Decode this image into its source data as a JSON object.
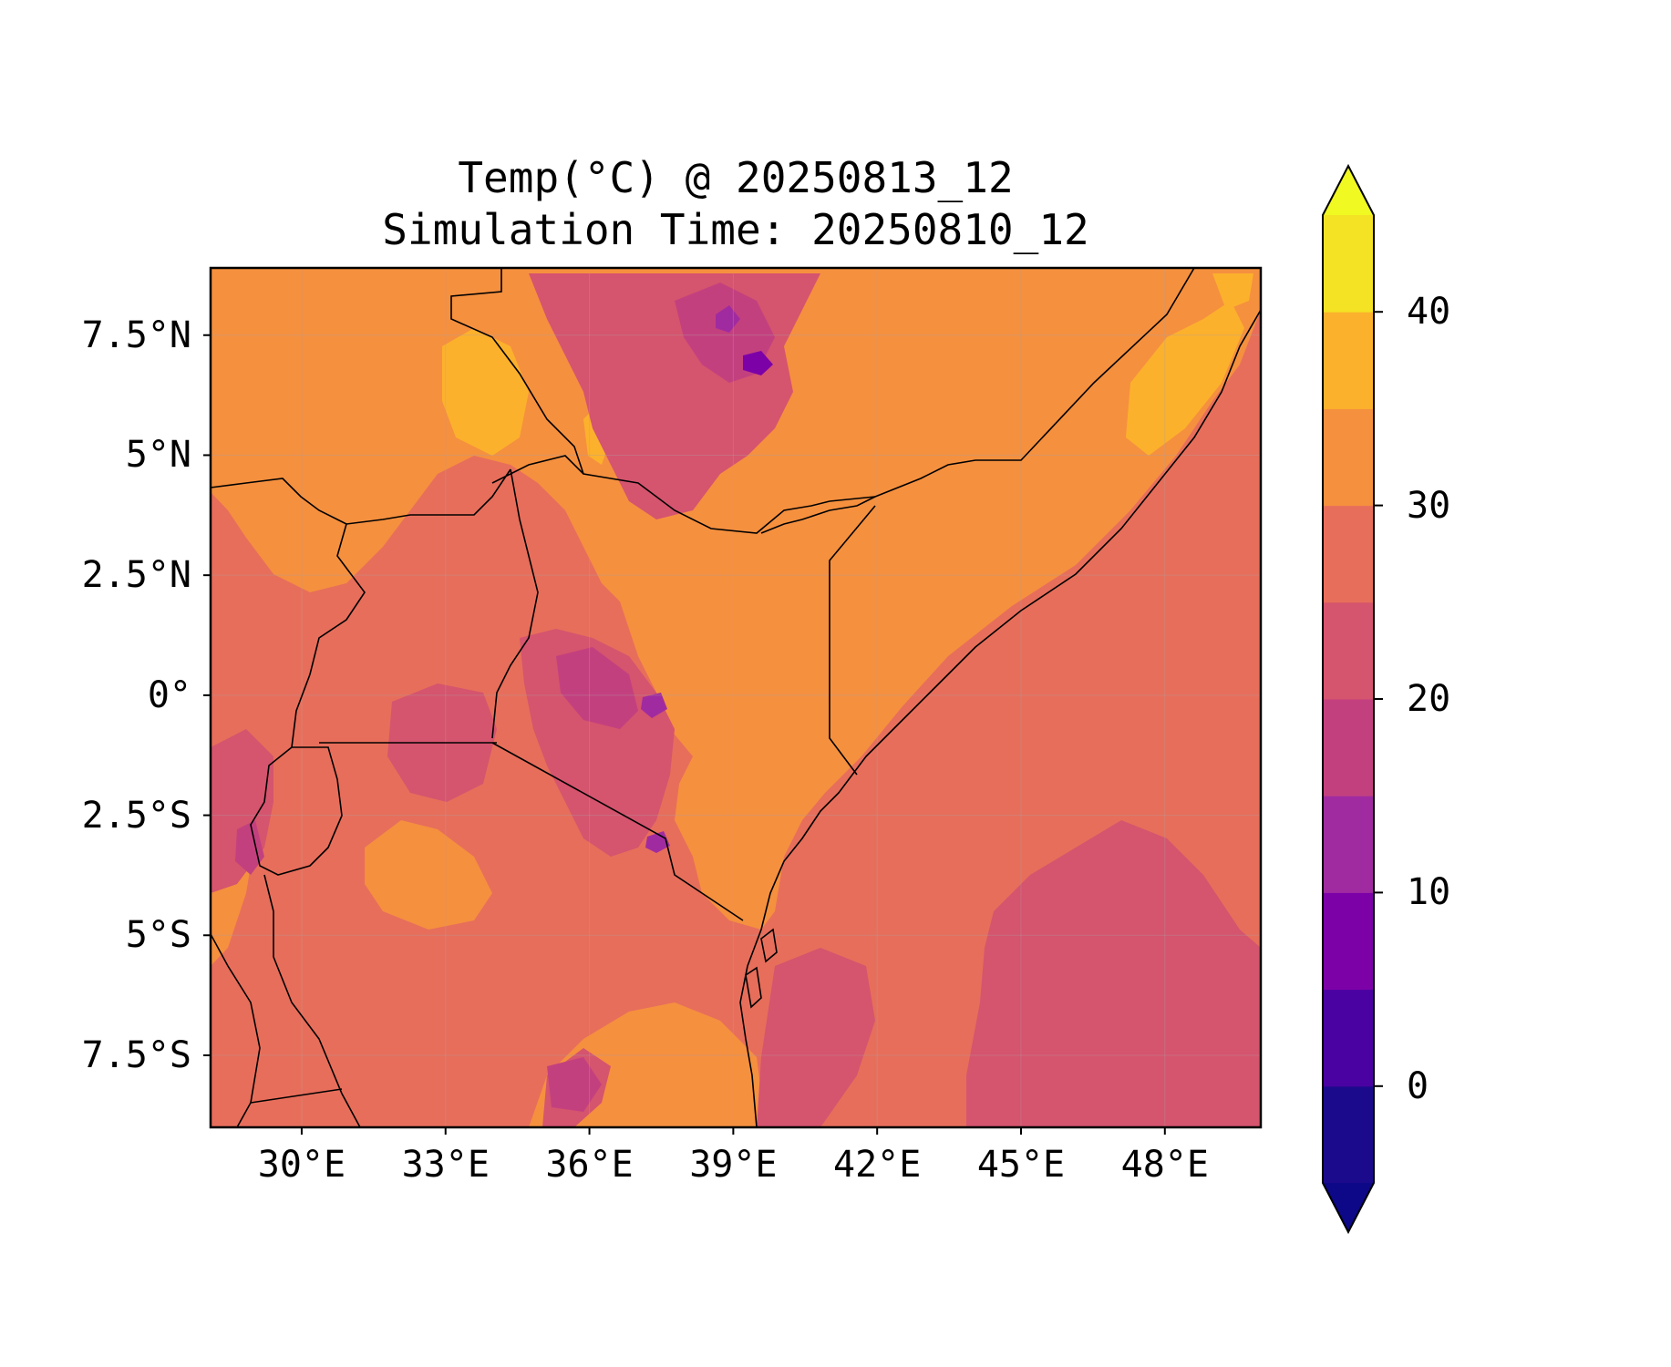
{
  "title": {
    "line1": "Temp(°C) @ 20250813_12",
    "line2": "Simulation Time: 20250810_12"
  },
  "map": {
    "region": "East Africa",
    "x_ticks": [
      {
        "lon": 30,
        "label": "30°E"
      },
      {
        "lon": 33,
        "label": "33°E"
      },
      {
        "lon": 36,
        "label": "36°E"
      },
      {
        "lon": 39,
        "label": "39°E"
      },
      {
        "lon": 42,
        "label": "42°E"
      },
      {
        "lon": 45,
        "label": "45°E"
      },
      {
        "lon": 48,
        "label": "48°E"
      }
    ],
    "y_ticks": [
      {
        "lat": 7.5,
        "label": "7.5°N"
      },
      {
        "lat": 5,
        "label": "5°N"
      },
      {
        "lat": 2.5,
        "label": "2.5°N"
      },
      {
        "lat": 0,
        "label": "0°"
      },
      {
        "lat": -2.5,
        "label": "2.5°S"
      },
      {
        "lat": -5,
        "label": "5°S"
      },
      {
        "lat": -7.5,
        "label": "7.5°S"
      }
    ],
    "lon_range": [
      28.1,
      50.0
    ],
    "lat_range": [
      -9.0,
      8.9
    ],
    "gridlines": true
  },
  "colorbar": {
    "units": "°C",
    "range": [
      -5,
      45
    ],
    "levels": [
      -5,
      0,
      5,
      10,
      15,
      20,
      25,
      30,
      35,
      40,
      45
    ],
    "colors": [
      "#1c0a8c",
      "#4a03a2",
      "#7c02a8",
      "#a02ba0",
      "#c3407f",
      "#d5546e",
      "#e76e5b",
      "#f5903f",
      "#fcb12c",
      "#f4e225"
    ],
    "extend_low_color": "#0d0887",
    "extend_high_color": "#f0f921",
    "tick_labels": [
      {
        "value": 0,
        "label": "0"
      },
      {
        "value": 10,
        "label": "10"
      },
      {
        "value": 20,
        "label": "20"
      },
      {
        "value": 30,
        "label": "30"
      },
      {
        "value": 40,
        "label": "40"
      }
    ]
  }
}
